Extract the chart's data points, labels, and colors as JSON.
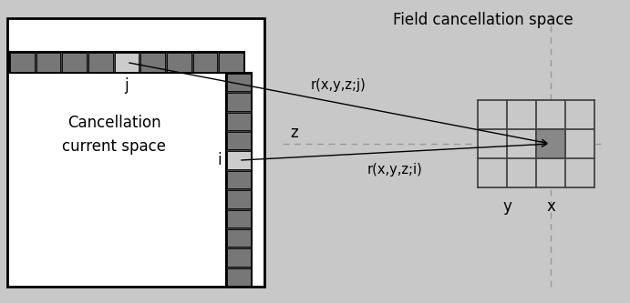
{
  "bg_outer": "#c8c8c8",
  "coil_color_dark": "#444444",
  "coil_color_mid": "#777777",
  "coil_color_light": "#bbbbbb",
  "coil_highlight": "#cccccc",
  "grid_color": "#444444",
  "dashed_color": "#999999",
  "highlight_cell_color": "#888888",
  "title_text": "Field cancellation space",
  "label_j": "j",
  "label_i": "i",
  "label_cancel": "Cancellation\ncurrent space",
  "label_rj": "r(x,y,z;j)",
  "label_ri": "r(x,y,z;i)",
  "label_z": "z",
  "label_y": "y",
  "label_x": "x"
}
